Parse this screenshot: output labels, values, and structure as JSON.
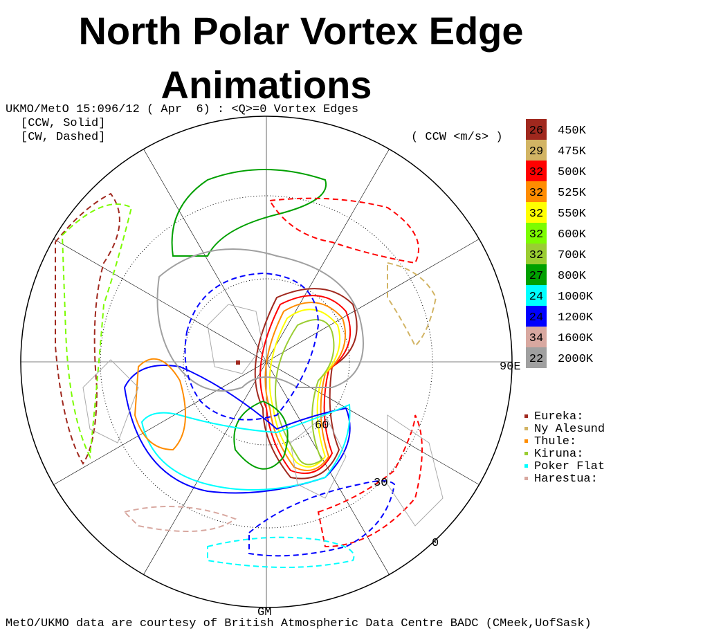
{
  "title_line1": "North Polar Vortex Edge",
  "title_line2": "Animations",
  "header": {
    "line1": "UKMO/MetO 15:096/12 ( Apr  6) : <Q>=0 Vortex Edges",
    "ccw": "[CCW, Solid]",
    "cw": "[CW, Dashed]"
  },
  "legend": {
    "unit": "( CCW <m/s> )",
    "items": [
      {
        "value": 26,
        "level": "450K",
        "color": "#a0281e"
      },
      {
        "value": 29,
        "level": "475K",
        "color": "#d2b464"
      },
      {
        "value": 32,
        "level": "500K",
        "color": "#ff0000"
      },
      {
        "value": 32,
        "level": "525K",
        "color": "#ff8c00"
      },
      {
        "value": 32,
        "level": "550K",
        "color": "#ffff00"
      },
      {
        "value": 32,
        "level": "600K",
        "color": "#7cfc00"
      },
      {
        "value": 32,
        "level": "700K",
        "color": "#9acd32"
      },
      {
        "value": 27,
        "level": "800K",
        "color": "#00a000"
      },
      {
        "value": 24,
        "level": "1000K",
        "color": "#00ffff"
      },
      {
        "value": 24,
        "level": "1200K",
        "color": "#0000ff"
      },
      {
        "value": 34,
        "level": "1600K",
        "color": "#d8a8a0"
      },
      {
        "value": 22,
        "level": "2000K",
        "color": "#a0a0a0"
      }
    ]
  },
  "map_labels": {
    "lon_90e": "90E",
    "lat_60": "60",
    "lat_30": "30",
    "lat_0": "0",
    "gm": "GM"
  },
  "stations": [
    {
      "name": "Eureka:",
      "color": "#a0281e"
    },
    {
      "name": "Ny Alesund",
      "color": "#d2b464"
    },
    {
      "name": "Thule:",
      "color": "#ff8c00"
    },
    {
      "name": "Kiruna:",
      "color": "#9acd32"
    },
    {
      "name": "Poker Flat",
      "color": "#00ffff"
    },
    {
      "name": "Harestua:",
      "color": "#d8a8a0"
    }
  ],
  "footer": "MetO/UKMO data are courtesy of British Atmospheric Data Centre BADC (CMeek,UofSask)"
}
